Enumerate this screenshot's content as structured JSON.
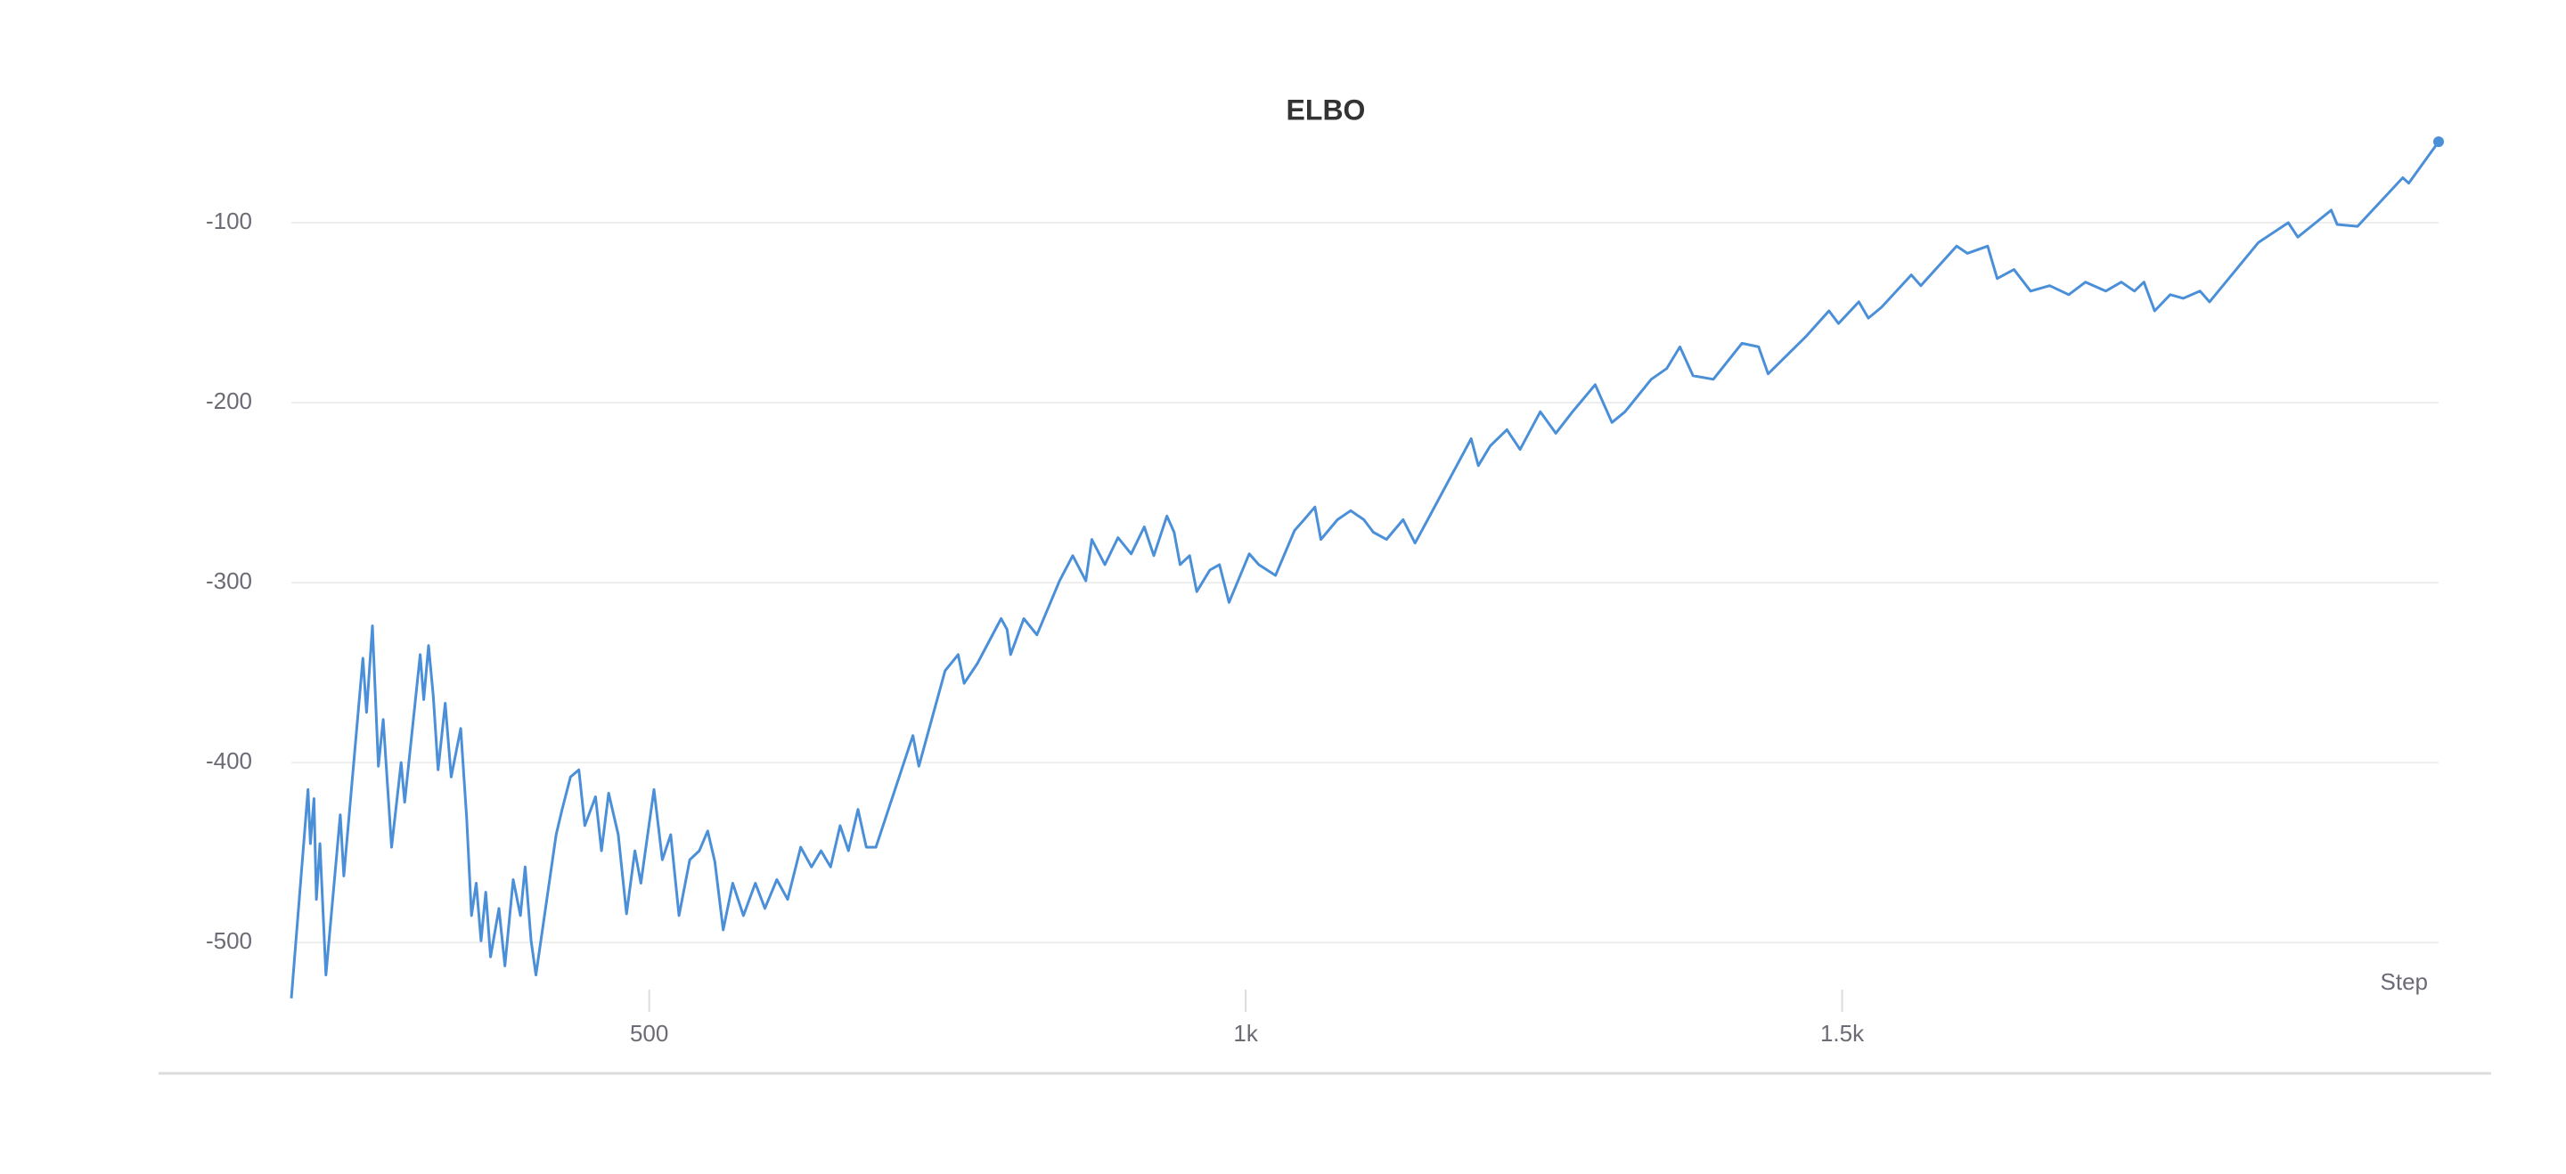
{
  "chart_data": {
    "type": "line",
    "title": "ELBO",
    "x_label": "Step",
    "color": "#4a8fd8",
    "grid": true,
    "xlim": [
      200,
      2000
    ],
    "xticks": [
      {
        "value": 500,
        "label": "500"
      },
      {
        "value": 1000,
        "label": "1k"
      },
      {
        "value": 1500,
        "label": "1.5k"
      }
    ],
    "ylim": [
      -540,
      -50
    ],
    "yticks": [
      -100,
      -200,
      -300,
      -400,
      -500
    ],
    "x": [
      200,
      214,
      216,
      219,
      221,
      224,
      229,
      241,
      244,
      260,
      263,
      268,
      273,
      277,
      284,
      292,
      295,
      308,
      311,
      315,
      319,
      323,
      329,
      334,
      342,
      347,
      351,
      355,
      359,
      363,
      367,
      374,
      379,
      386,
      392,
      396,
      401,
      405,
      422,
      427,
      434,
      441,
      446,
      455,
      460,
      466,
      474,
      481,
      488,
      493,
      504,
      511,
      518,
      525,
      534,
      542,
      549,
      555,
      562,
      570,
      579,
      589,
      597,
      607,
      616,
      627,
      636,
      644,
      652,
      660,
      667,
      675,
      682,
      690,
      721,
      726,
      748,
      759,
      764,
      775,
      795,
      800,
      803,
      814,
      825,
      844,
      855,
      866,
      871,
      882,
      893,
      904,
      915,
      923,
      934,
      940,
      945,
      953,
      959,
      970,
      978,
      986,
      1003,
      1011,
      1025,
      1041,
      1049,
      1058,
      1063,
      1077,
      1088,
      1099,
      1107,
      1118,
      1132,
      1142,
      1151,
      1189,
      1195,
      1205,
      1219,
      1230,
      1247,
      1260,
      1274,
      1293,
      1307,
      1318,
      1340,
      1353,
      1364,
      1375,
      1392,
      1416,
      1430,
      1438,
      1470,
      1489,
      1497,
      1514,
      1522,
      1533,
      1558,
      1566,
      1596,
      1605,
      1622,
      1630,
      1644,
      1658,
      1674,
      1690,
      1704,
      1721,
      1734,
      1745,
      1753,
      1762,
      1775,
      1786,
      1800,
      1808,
      1849,
      1874,
      1882,
      1910,
      1915,
      1932,
      1970,
      1975,
      2000
    ],
    "values": [
      -531,
      -415,
      -445,
      -420,
      -476,
      -445,
      -518,
      -429,
      -463,
      -342,
      -372,
      -324,
      -402,
      -376,
      -447,
      -400,
      -422,
      -340,
      -365,
      -335,
      -363,
      -404,
      -367,
      -408,
      -381,
      -431,
      -485,
      -467,
      -499,
      -472,
      -508,
      -481,
      -513,
      -465,
      -485,
      -458,
      -499,
      -518,
      -440,
      -426,
      -408,
      -404,
      -435,
      -419,
      -449,
      -417,
      -440,
      -484,
      -449,
      -467,
      -415,
      -454,
      -440,
      -485,
      -454,
      -449,
      -438,
      -455,
      -493,
      -467,
      -485,
      -467,
      -481,
      -465,
      -476,
      -447,
      -458,
      -449,
      -458,
      -435,
      -449,
      -426,
      -447,
      -447,
      -385,
      -402,
      -349,
      -340,
      -356,
      -345,
      -320,
      -326,
      -340,
      -320,
      -329,
      -299,
      -285,
      -299,
      -276,
      -290,
      -275,
      -284,
      -269,
      -285,
      -263,
      -272,
      -290,
      -285,
      -305,
      -293,
      -290,
      -311,
      -284,
      -290,
      -296,
      -271,
      -265,
      -258,
      -276,
      -265,
      -260,
      -265,
      -272,
      -276,
      -265,
      -278,
      -267,
      -220,
      -235,
      -224,
      -215,
      -226,
      -205,
      -217,
      -205,
      -190,
      -211,
      -205,
      -187,
      -181,
      -169,
      -185,
      -187,
      -167,
      -169,
      -184,
      -163,
      -149,
      -156,
      -144,
      -153,
      -147,
      -129,
      -135,
      -113,
      -117,
      -113,
      -131,
      -126,
      -138,
      -135,
      -140,
      -133,
      -138,
      -133,
      -138,
      -133,
      -149,
      -140,
      -142,
      -138,
      -144,
      -111,
      -100,
      -108,
      -93,
      -101,
      -102,
      -75,
      -78,
      -55
    ]
  }
}
